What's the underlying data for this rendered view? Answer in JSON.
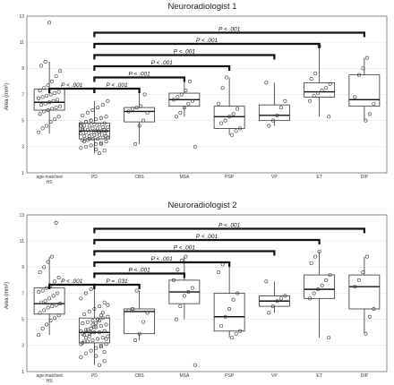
{
  "chart_data": [
    {
      "type": "box",
      "title": "Neuroradiologist 1",
      "ylabel": "Area (mm²)",
      "ylim": [
        1,
        13
      ],
      "yticks": [
        "1",
        "3",
        "5",
        "7",
        "9",
        "11",
        "13"
      ],
      "grid": "horizontal",
      "categories": [
        "age-matched HS",
        "PD",
        "CBS",
        "MSA",
        "PSP",
        "VP",
        "ET",
        "DIP"
      ],
      "category_lines": [
        [
          "age-matched",
          "HS"
        ],
        [
          "PD"
        ],
        [
          "CBS"
        ],
        [
          "MSA"
        ],
        [
          "PSP"
        ],
        [
          "VP"
        ],
        [
          "ET"
        ],
        [
          "DIP"
        ]
      ],
      "boxes": [
        {
          "q1": 5.8,
          "median": 6.4,
          "q3": 7.4,
          "lo": 4.0,
          "hi": 9.5
        },
        {
          "q1": 3.6,
          "median": 4.2,
          "q3": 4.8,
          "lo": 2.5,
          "hi": 6.5
        },
        {
          "q1": 4.9,
          "median": 5.7,
          "q3": 6.0,
          "lo": 3.2,
          "hi": 7.1
        },
        {
          "q1": 6.1,
          "median": 6.6,
          "q3": 7.1,
          "lo": 5.3,
          "hi": 8.0
        },
        {
          "q1": 4.4,
          "median": 5.3,
          "q3": 6.1,
          "lo": 3.9,
          "hi": 8.3
        },
        {
          "q1": 5.0,
          "median": 5.4,
          "q3": 6.2,
          "lo": 4.6,
          "hi": 7.9
        },
        {
          "q1": 6.8,
          "median": 7.2,
          "q3": 7.9,
          "lo": 5.3,
          "hi": 10.7
        },
        {
          "q1": 6.1,
          "median": 6.6,
          "q3": 8.5,
          "lo": 5.0,
          "hi": 9.8
        }
      ],
      "points": [
        [
          4.1,
          4.4,
          4.6,
          4.9,
          5.1,
          5.3,
          5.5,
          5.7,
          5.8,
          5.9,
          6.0,
          6.1,
          6.2,
          6.3,
          6.4,
          6.5,
          6.6,
          6.7,
          6.8,
          6.9,
          7.0,
          7.1,
          7.2,
          7.3,
          7.5,
          7.7,
          8.0,
          8.4,
          8.8,
          9.2,
          9.5,
          12.5
        ],
        [
          2.5,
          2.7,
          2.9,
          3.0,
          3.1,
          3.2,
          3.3,
          3.4,
          3.5,
          3.5,
          3.6,
          3.6,
          3.7,
          3.7,
          3.8,
          3.8,
          3.9,
          3.9,
          4.0,
          4.0,
          4.1,
          4.1,
          4.2,
          4.2,
          4.2,
          4.3,
          4.3,
          4.4,
          4.4,
          4.5,
          4.5,
          4.6,
          4.6,
          4.7,
          4.7,
          4.8,
          4.8,
          4.9,
          5.0,
          5.1,
          5.2,
          5.3,
          5.4,
          5.6,
          5.8,
          6.0,
          6.2,
          6.5,
          3.4,
          3.6,
          3.9,
          4.1,
          4.3,
          4.6,
          4.9,
          5.0,
          2.8,
          3.2,
          3.8,
          4.4
        ],
        [
          3.2,
          4.6,
          5.0,
          5.6,
          5.7,
          5.9,
          6.0,
          6.1,
          7.0
        ],
        [
          3.0,
          5.3,
          5.6,
          6.0,
          6.3,
          6.5,
          6.6,
          6.8,
          7.0,
          7.3,
          8.0
        ],
        [
          3.9,
          4.2,
          4.4,
          4.8,
          5.0,
          5.3,
          5.5,
          5.9,
          6.3,
          7.5,
          8.3
        ],
        [
          4.6,
          5.0,
          5.4,
          6.0,
          6.5,
          7.9
        ],
        [
          5.3,
          6.5,
          6.9,
          7.1,
          7.3,
          7.5,
          7.8,
          8.2,
          8.6,
          10.7
        ],
        [
          5.0,
          5.5,
          6.3,
          6.8,
          8.5,
          9.0,
          9.8
        ]
      ],
      "comparisons": [
        {
          "label": "P < .001",
          "from": "age-matched HS",
          "to": "PD"
        },
        {
          "label": "P < .001",
          "from": "PD",
          "to": "CBS"
        },
        {
          "label": "P < .001",
          "from": "PD",
          "to": "MSA"
        },
        {
          "label": "P < .001",
          "from": "PD",
          "to": "PSP"
        },
        {
          "label": "P < .001",
          "from": "PD",
          "to": "VP"
        },
        {
          "label": "P < .001",
          "from": "PD",
          "to": "ET"
        },
        {
          "label": "P < .001",
          "from": "PD",
          "to": "DIP"
        }
      ]
    },
    {
      "type": "box",
      "title": "Neuroradiologist 2",
      "ylabel": "Area (mm²)",
      "ylim": [
        1,
        13
      ],
      "yticks": [
        "1",
        "3",
        "5",
        "7",
        "9",
        "11",
        "13"
      ],
      "grid": "horizontal",
      "categories": [
        "age-matched HS",
        "PD",
        "CBS",
        "MSA",
        "PSP",
        "VP",
        "ET",
        "DIP"
      ],
      "category_lines": [
        [
          "age-matched",
          "HS"
        ],
        [
          "PD"
        ],
        [
          "CBS"
        ],
        [
          "MSA"
        ],
        [
          "PSP"
        ],
        [
          "VP"
        ],
        [
          "ET"
        ],
        [
          "DIP"
        ]
      ],
      "boxes": [
        {
          "q1": 5.4,
          "median": 6.2,
          "q3": 7.4,
          "lo": 3.8,
          "hi": 9.8
        },
        {
          "q1": 3.2,
          "median": 4.0,
          "q3": 5.1,
          "lo": 1.5,
          "hi": 7.3
        },
        {
          "q1": 3.9,
          "median": 5.6,
          "q3": 5.8,
          "lo": 3.4,
          "hi": 7.2
        },
        {
          "q1": 6.2,
          "median": 7.1,
          "q3": 8.0,
          "lo": 5.0,
          "hi": 9.8
        },
        {
          "q1": 4.1,
          "median": 5.2,
          "q3": 7.0,
          "lo": 3.6,
          "hi": 9.2
        },
        {
          "q1": 6.0,
          "median": 6.4,
          "q3": 6.8,
          "lo": 5.5,
          "hi": 7.9
        },
        {
          "q1": 6.6,
          "median": 7.3,
          "q3": 8.4,
          "lo": 3.6,
          "hi": 10.2
        },
        {
          "q1": 5.8,
          "median": 7.5,
          "q3": 8.4,
          "lo": 3.9,
          "hi": 9.8
        }
      ],
      "points": [
        [
          3.8,
          4.3,
          4.6,
          4.9,
          5.1,
          5.3,
          5.5,
          5.7,
          5.9,
          6.0,
          6.1,
          6.2,
          6.3,
          6.4,
          6.6,
          6.8,
          7.0,
          7.1,
          7.2,
          7.4,
          7.6,
          7.9,
          8.2,
          8.6,
          9.0,
          9.4,
          9.8,
          12.4
        ],
        [
          1.5,
          1.8,
          2.1,
          2.4,
          2.6,
          2.8,
          3.0,
          3.1,
          3.2,
          3.3,
          3.4,
          3.5,
          3.6,
          3.7,
          3.8,
          3.9,
          4.0,
          4.0,
          4.1,
          4.1,
          4.2,
          4.3,
          4.4,
          4.5,
          4.6,
          4.7,
          4.8,
          4.9,
          5.0,
          5.1,
          5.2,
          5.4,
          5.6,
          5.8,
          6.0,
          6.3,
          6.6,
          7.0,
          7.3,
          2.2,
          2.9,
          3.5,
          3.9,
          4.2,
          4.6,
          5.0,
          5.5,
          6.1,
          3.3,
          3.7,
          4.4,
          4.9,
          2.5,
          3.1,
          3.6,
          4.0,
          4.7,
          5.3
        ],
        [
          3.4,
          3.9,
          4.8,
          5.5,
          5.7,
          5.8,
          7.2
        ],
        [
          1.5,
          5.0,
          6.0,
          6.8,
          7.1,
          7.4,
          8.0,
          8.8,
          9.5,
          9.8
        ],
        [
          3.6,
          3.9,
          4.1,
          4.5,
          5.2,
          5.8,
          6.5,
          7.0,
          8.6,
          9.2
        ],
        [
          5.5,
          6.0,
          6.4,
          6.6,
          6.8,
          7.9
        ],
        [
          3.6,
          6.6,
          7.0,
          7.3,
          7.6,
          8.0,
          8.4,
          9.3,
          9.8,
          10.2
        ],
        [
          3.9,
          5.2,
          5.8,
          7.5,
          8.0,
          8.6,
          9.8
        ]
      ],
      "comparisons": [
        {
          "label": "P < .001",
          "from": "age-matched HS",
          "to": "PD"
        },
        {
          "label": "P = .031",
          "from": "PD",
          "to": "CBS"
        },
        {
          "label": "P < .001",
          "from": "PD",
          "to": "MSA"
        },
        {
          "label": "P < .001",
          "from": "PD",
          "to": "PSP"
        },
        {
          "label": "P < .001",
          "from": "PD",
          "to": "VP"
        },
        {
          "label": "P < .001",
          "from": "PD",
          "to": "ET"
        },
        {
          "label": "P < .001",
          "from": "PD",
          "to": "DIP"
        }
      ]
    }
  ]
}
